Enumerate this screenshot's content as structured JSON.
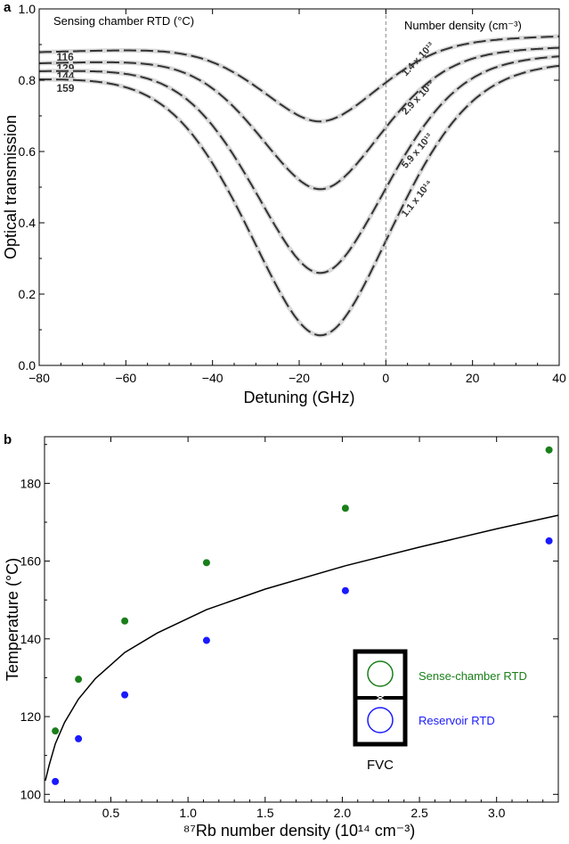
{
  "chart_data": [
    {
      "type": "line",
      "panel": "a",
      "xlabel": "Detuning (GHz)",
      "ylabel": "Optical transmission",
      "xlim": [
        -80,
        40
      ],
      "ylim": [
        0,
        1.0
      ],
      "xticks": [
        -80,
        -60,
        -40,
        -20,
        0,
        20,
        40
      ],
      "xtick_labels": [
        "−80",
        "−60",
        "−40",
        "−20",
        "0",
        "20",
        "40"
      ],
      "yticks": [
        0,
        0.2,
        0.4,
        0.6,
        0.8,
        1.0
      ],
      "ytick_labels": [
        "0.0",
        "0.2",
        "0.4",
        "0.6",
        "0.8",
        "1.0"
      ],
      "vline_x": 0,
      "annotation_left": "Sensing chamber RTD (°C)",
      "annotation_right": "Number density (cm⁻³)",
      "series": [
        {
          "name": "116",
          "density_label": "1.4 x 10¹³",
          "center": -15,
          "base": 0.91,
          "min": 0.69,
          "width": 20
        },
        {
          "name": "129",
          "density_label": "2.9 x 10¹³",
          "center": -15,
          "base": 0.88,
          "min": 0.5,
          "width": 21
        },
        {
          "name": "144",
          "density_label": "5.9 x 10¹³",
          "center": -15,
          "base": 0.86,
          "min": 0.265,
          "width": 23
        },
        {
          "name": "159",
          "density_label": "1.1 x 10¹⁴",
          "center": -15,
          "base": 0.84,
          "min": 0.09,
          "width": 25
        }
      ]
    },
    {
      "type": "scatter",
      "panel": "b",
      "xlabel": "⁸⁷Rb number density (10¹⁴ cm⁻³)",
      "ylabel": "Temperature (°C)",
      "xlim": [
        0.07,
        3.4
      ],
      "ylim": [
        98,
        192
      ],
      "xticks": [
        0.5,
        1.0,
        1.5,
        2.0,
        2.5,
        3.0
      ],
      "xtick_labels": [
        "0.5",
        "1.0",
        "1.5",
        "2.0",
        "2.5",
        "3.0"
      ],
      "yticks": [
        100,
        120,
        140,
        160,
        180
      ],
      "ytick_labels": [
        "100",
        "120",
        "140",
        "160",
        "180"
      ],
      "series": [
        {
          "name": "Sense-chamber RTD",
          "color": "#1a7f1a",
          "x": [
            0.14,
            0.29,
            0.59,
            1.12,
            2.02,
            3.34
          ],
          "y": [
            116.3,
            129.6,
            144.6,
            159.6,
            173.6,
            188.6
          ]
        },
        {
          "name": "Reservoir RTD",
          "color": "#1a1aff",
          "x": [
            0.14,
            0.29,
            0.59,
            1.12,
            2.02,
            3.34
          ],
          "y": [
            103.3,
            114.3,
            125.6,
            139.6,
            152.4,
            165.2
          ]
        }
      ],
      "fit": {
        "x": [
          0.075,
          0.1,
          0.14,
          0.2,
          0.29,
          0.4,
          0.59,
          0.8,
          1.12,
          1.5,
          2.02,
          2.5,
          3.0,
          3.4
        ],
        "y": [
          103.5,
          107.5,
          113,
          118.5,
          124.5,
          129.8,
          136.5,
          141.5,
          147.5,
          152.8,
          158.8,
          163.6,
          168.3,
          171.8
        ]
      },
      "inset_label": "FVC"
    }
  ]
}
